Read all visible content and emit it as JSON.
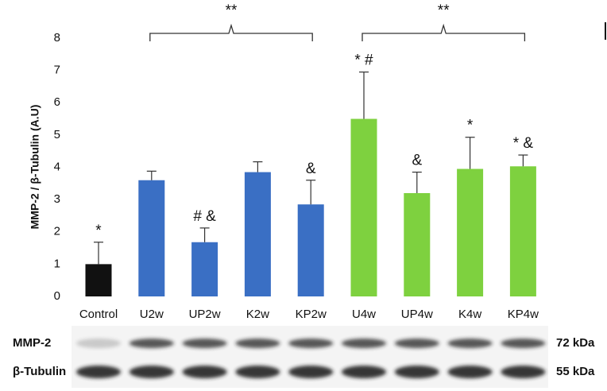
{
  "chart_data": {
    "type": "bar",
    "y_label": "MMP-2 / β-Tubulin (A.U)",
    "categories": [
      "Control",
      "U2w",
      "UP2w",
      "K2w",
      "KP2w",
      "U4w",
      "UP4w",
      "K4w",
      "KP4w"
    ],
    "values": [
      1.0,
      3.6,
      1.68,
      3.85,
      2.85,
      5.5,
      3.2,
      3.95,
      4.03
    ],
    "errors": [
      0.68,
      0.28,
      0.44,
      0.32,
      0.75,
      1.45,
      0.65,
      0.98,
      0.35
    ],
    "colors": [
      "#111111",
      "#3a6fc4",
      "#3a6fc4",
      "#3a6fc4",
      "#3a6fc4",
      "#7ed13f",
      "#7ed13f",
      "#7ed13f",
      "#7ed13f"
    ],
    "significance": [
      "*",
      null,
      "# &",
      null,
      "&",
      "* #",
      "&",
      "*",
      "* &"
    ],
    "brackets": [
      {
        "from": "U2w",
        "to": "KP2w",
        "label": "**"
      },
      {
        "from": "U4w",
        "to": "KP4w",
        "label": "**"
      }
    ],
    "ylim": [
      0,
      8
    ],
    "yticks": [
      0,
      1,
      2,
      3,
      4,
      5,
      6,
      7,
      8
    ],
    "grid": false
  },
  "blot": {
    "rows": [
      {
        "label": "MMP-2",
        "size": "72 kDa"
      },
      {
        "label": "β-Tubulin",
        "size": "55 kDa"
      }
    ]
  }
}
